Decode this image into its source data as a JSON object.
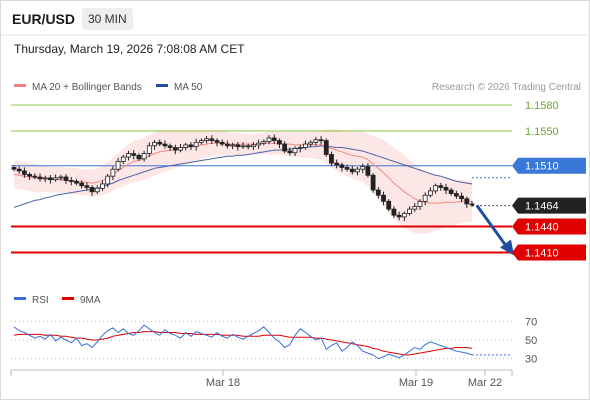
{
  "header": {
    "symbol": "EUR/USD",
    "timeframe": "30 MIN",
    "datetime": "Thursday, March 19, 2026 7:08:08 AM CET"
  },
  "chart_data": [
    {
      "type": "candlestick",
      "legend": [
        {
          "name": "MA 20 + Bollinger Bands",
          "color": "#f08080"
        },
        {
          "name": "MA 50",
          "color": "#1f4e9c"
        }
      ],
      "source": "Research © 2026 Trading Central",
      "ylim": [
        1.1376,
        1.1595
      ],
      "levels": [
        {
          "value": 1.158,
          "label": "1.1580",
          "color": "#8bc34a",
          "style": "resistance"
        },
        {
          "value": 1.155,
          "label": "1.1550",
          "color": "#8bc34a",
          "style": "resistance"
        },
        {
          "value": 1.151,
          "label": "1.1510",
          "color": "#3a78d8",
          "style": "pivot"
        },
        {
          "value": 1.1464,
          "label": "1.1464",
          "color": "#222222",
          "style": "last"
        },
        {
          "value": 1.144,
          "label": "1.1440",
          "color": "#e00000",
          "style": "support"
        },
        {
          "value": 1.141,
          "label": "1.1410",
          "color": "#e00000",
          "style": "support"
        }
      ],
      "x_ticks": [
        "Mar 18",
        "Mar 19",
        "Mar 22"
      ],
      "close": [
        1.1506,
        1.1504,
        1.15,
        1.1498,
        1.1497,
        1.1495,
        1.1496,
        1.1494,
        1.1496,
        1.1497,
        1.1493,
        1.1492,
        1.149,
        1.1487,
        1.1485,
        1.148,
        1.1484,
        1.1489,
        1.1498,
        1.1506,
        1.1515,
        1.152,
        1.1524,
        1.1522,
        1.1518,
        1.1524,
        1.1533,
        1.1537,
        1.1535,
        1.1533,
        1.1531,
        1.1528,
        1.1531,
        1.1534,
        1.1532,
        1.1537,
        1.1539,
        1.1541,
        1.1539,
        1.1537,
        1.1535,
        1.1533,
        1.1534,
        1.1532,
        1.1533,
        1.1532,
        1.1534,
        1.1536,
        1.1538,
        1.1542,
        1.1539,
        1.1535,
        1.1527,
        1.1525,
        1.153,
        1.1531,
        1.1535,
        1.1537,
        1.154,
        1.1539,
        1.1523,
        1.1513,
        1.1511,
        1.1508,
        1.1506,
        1.1503,
        1.1506,
        1.1509,
        1.1499,
        1.1482,
        1.1476,
        1.1469,
        1.146,
        1.1453,
        1.1451,
        1.1455,
        1.146,
        1.1463,
        1.1469,
        1.1476,
        1.1481,
        1.1487,
        1.1485,
        1.1482,
        1.1478,
        1.1475,
        1.1472,
        1.1466,
        1.1465
      ],
      "ma20": [
        1.15,
        1.1499,
        1.1498,
        1.1497,
        1.1496,
        1.1495,
        1.1495,
        1.1494,
        1.1494,
        1.1494,
        1.1493,
        1.1493,
        1.1492,
        1.1491,
        1.1491,
        1.149,
        1.1491,
        1.1493,
        1.1496,
        1.15,
        1.1504,
        1.1508,
        1.1512,
        1.1515,
        1.1516,
        1.1518,
        1.1521,
        1.1524,
        1.1526,
        1.1527,
        1.1528,
        1.1529,
        1.153,
        1.1531,
        1.1532,
        1.1533,
        1.1534,
        1.1535,
        1.1536,
        1.1536,
        1.1536,
        1.1535,
        1.1535,
        1.1535,
        1.1535,
        1.1535,
        1.1535,
        1.1535,
        1.1536,
        1.1536,
        1.1536,
        1.1536,
        1.1535,
        1.1535,
        1.1534,
        1.1534,
        1.1534,
        1.1534,
        1.1534,
        1.1534,
        1.1532,
        1.153,
        1.1528,
        1.1526,
        1.1524,
        1.1522,
        1.1521,
        1.152,
        1.1517,
        1.1512,
        1.1507,
        1.1502,
        1.1496,
        1.149,
        1.1485,
        1.148,
        1.1476,
        1.1472,
        1.1469,
        1.1468,
        1.1467,
        1.1467,
        1.1467,
        1.1468,
        1.1468,
        1.1468,
        1.1469,
        1.1469,
        1.1469
      ],
      "ma50": [
        1.1462,
        1.1464,
        1.1466,
        1.1468,
        1.147,
        1.1471,
        1.1473,
        1.1474,
        1.1476,
        1.1477,
        1.1478,
        1.1479,
        1.148,
        1.1481,
        1.1482,
        1.1483,
        1.1484,
        1.1486,
        1.1488,
        1.149,
        1.1493,
        1.1495,
        1.1497,
        1.1499,
        1.1501,
        1.1503,
        1.1505,
        1.1507,
        1.1508,
        1.1509,
        1.151,
        1.1511,
        1.1512,
        1.1513,
        1.1514,
        1.1515,
        1.1516,
        1.1517,
        1.1518,
        1.1519,
        1.152,
        1.1521,
        1.1521,
        1.1522,
        1.1522,
        1.1523,
        1.1524,
        1.1525,
        1.1526,
        1.1527,
        1.1528,
        1.1528,
        1.1529,
        1.1529,
        1.153,
        1.153,
        1.1531,
        1.1532,
        1.1532,
        1.1533,
        1.1532,
        1.1532,
        1.1531,
        1.1531,
        1.153,
        1.1529,
        1.1528,
        1.1527,
        1.1525,
        1.1523,
        1.1521,
        1.1519,
        1.1517,
        1.1515,
        1.1513,
        1.1511,
        1.1509,
        1.1507,
        1.1505,
        1.1503,
        1.1501,
        1.1499,
        1.1498,
        1.1496,
        1.1494,
        1.1492,
        1.1491,
        1.149,
        1.1489
      ],
      "band_width": [
        0.0016,
        0.0016,
        0.0016,
        0.0016,
        0.0016,
        0.0016,
        0.0015,
        0.0015,
        0.0015,
        0.0015,
        0.0015,
        0.0015,
        0.0015,
        0.0015,
        0.0015,
        0.0016,
        0.0016,
        0.0017,
        0.0018,
        0.0019,
        0.002,
        0.0022,
        0.0023,
        0.0024,
        0.0024,
        0.0024,
        0.0025,
        0.0025,
        0.0025,
        0.0024,
        0.0023,
        0.0022,
        0.0021,
        0.002,
        0.0019,
        0.0018,
        0.0017,
        0.0016,
        0.0015,
        0.0015,
        0.0014,
        0.0014,
        0.0013,
        0.0013,
        0.0012,
        0.0012,
        0.0012,
        0.0012,
        0.0012,
        0.0013,
        0.0013,
        0.0013,
        0.0014,
        0.0014,
        0.0014,
        0.0015,
        0.0015,
        0.0015,
        0.0016,
        0.0017,
        0.002,
        0.0022,
        0.0024,
        0.0025,
        0.0026,
        0.0027,
        0.0028,
        0.0029,
        0.003,
        0.0033,
        0.0036,
        0.0038,
        0.004,
        0.0041,
        0.0042,
        0.0042,
        0.0041,
        0.004,
        0.0038,
        0.0036,
        0.0034,
        0.0032,
        0.003,
        0.0028,
        0.0027,
        0.0026,
        0.0025,
        0.0024,
        0.0024
      ],
      "forecast": {
        "from": 1.1464,
        "to": 1.141
      }
    },
    {
      "type": "line",
      "legend": [
        {
          "name": "RSI",
          "color": "#3a6fd8"
        },
        {
          "name": "9MA",
          "color": "#e00000"
        }
      ],
      "y_ticks": [
        "70",
        "50",
        "30"
      ],
      "ylim": [
        20,
        80
      ],
      "rsi": [
        64,
        60,
        58,
        55,
        52,
        54,
        51,
        56,
        49,
        53,
        50,
        47,
        52,
        44,
        46,
        42,
        48,
        55,
        60,
        63,
        58,
        62,
        57,
        55,
        60,
        66,
        62,
        58,
        55,
        61,
        57,
        55,
        52,
        58,
        54,
        59,
        57,
        55,
        53,
        58,
        54,
        52,
        56,
        53,
        51,
        54,
        57,
        60,
        64,
        58,
        52,
        48,
        42,
        45,
        55,
        62,
        58,
        54,
        50,
        52,
        40,
        44,
        47,
        38,
        42,
        48,
        44,
        38,
        36,
        34,
        30,
        32,
        35,
        33,
        31,
        34,
        38,
        42,
        40,
        45,
        48,
        46,
        44,
        42,
        40,
        38,
        37,
        36,
        34
      ],
      "ma9": [
        55,
        56,
        56,
        56,
        56,
        56,
        55,
        55,
        55,
        54,
        54,
        53,
        52,
        52,
        51,
        50,
        50,
        51,
        52,
        54,
        55,
        56,
        57,
        58,
        58,
        59,
        59,
        59,
        58,
        58,
        58,
        58,
        57,
        57,
        57,
        56,
        56,
        56,
        56,
        56,
        55,
        55,
        55,
        55,
        54,
        54,
        54,
        54,
        55,
        55,
        55,
        55,
        54,
        53,
        53,
        53,
        53,
        53,
        52,
        52,
        51,
        50,
        49,
        48,
        47,
        46,
        45,
        44,
        43,
        41,
        40,
        38,
        37,
        36,
        35,
        34,
        34,
        35,
        36,
        37,
        38,
        39,
        40,
        41,
        41,
        42,
        42,
        42,
        41
      ]
    }
  ]
}
